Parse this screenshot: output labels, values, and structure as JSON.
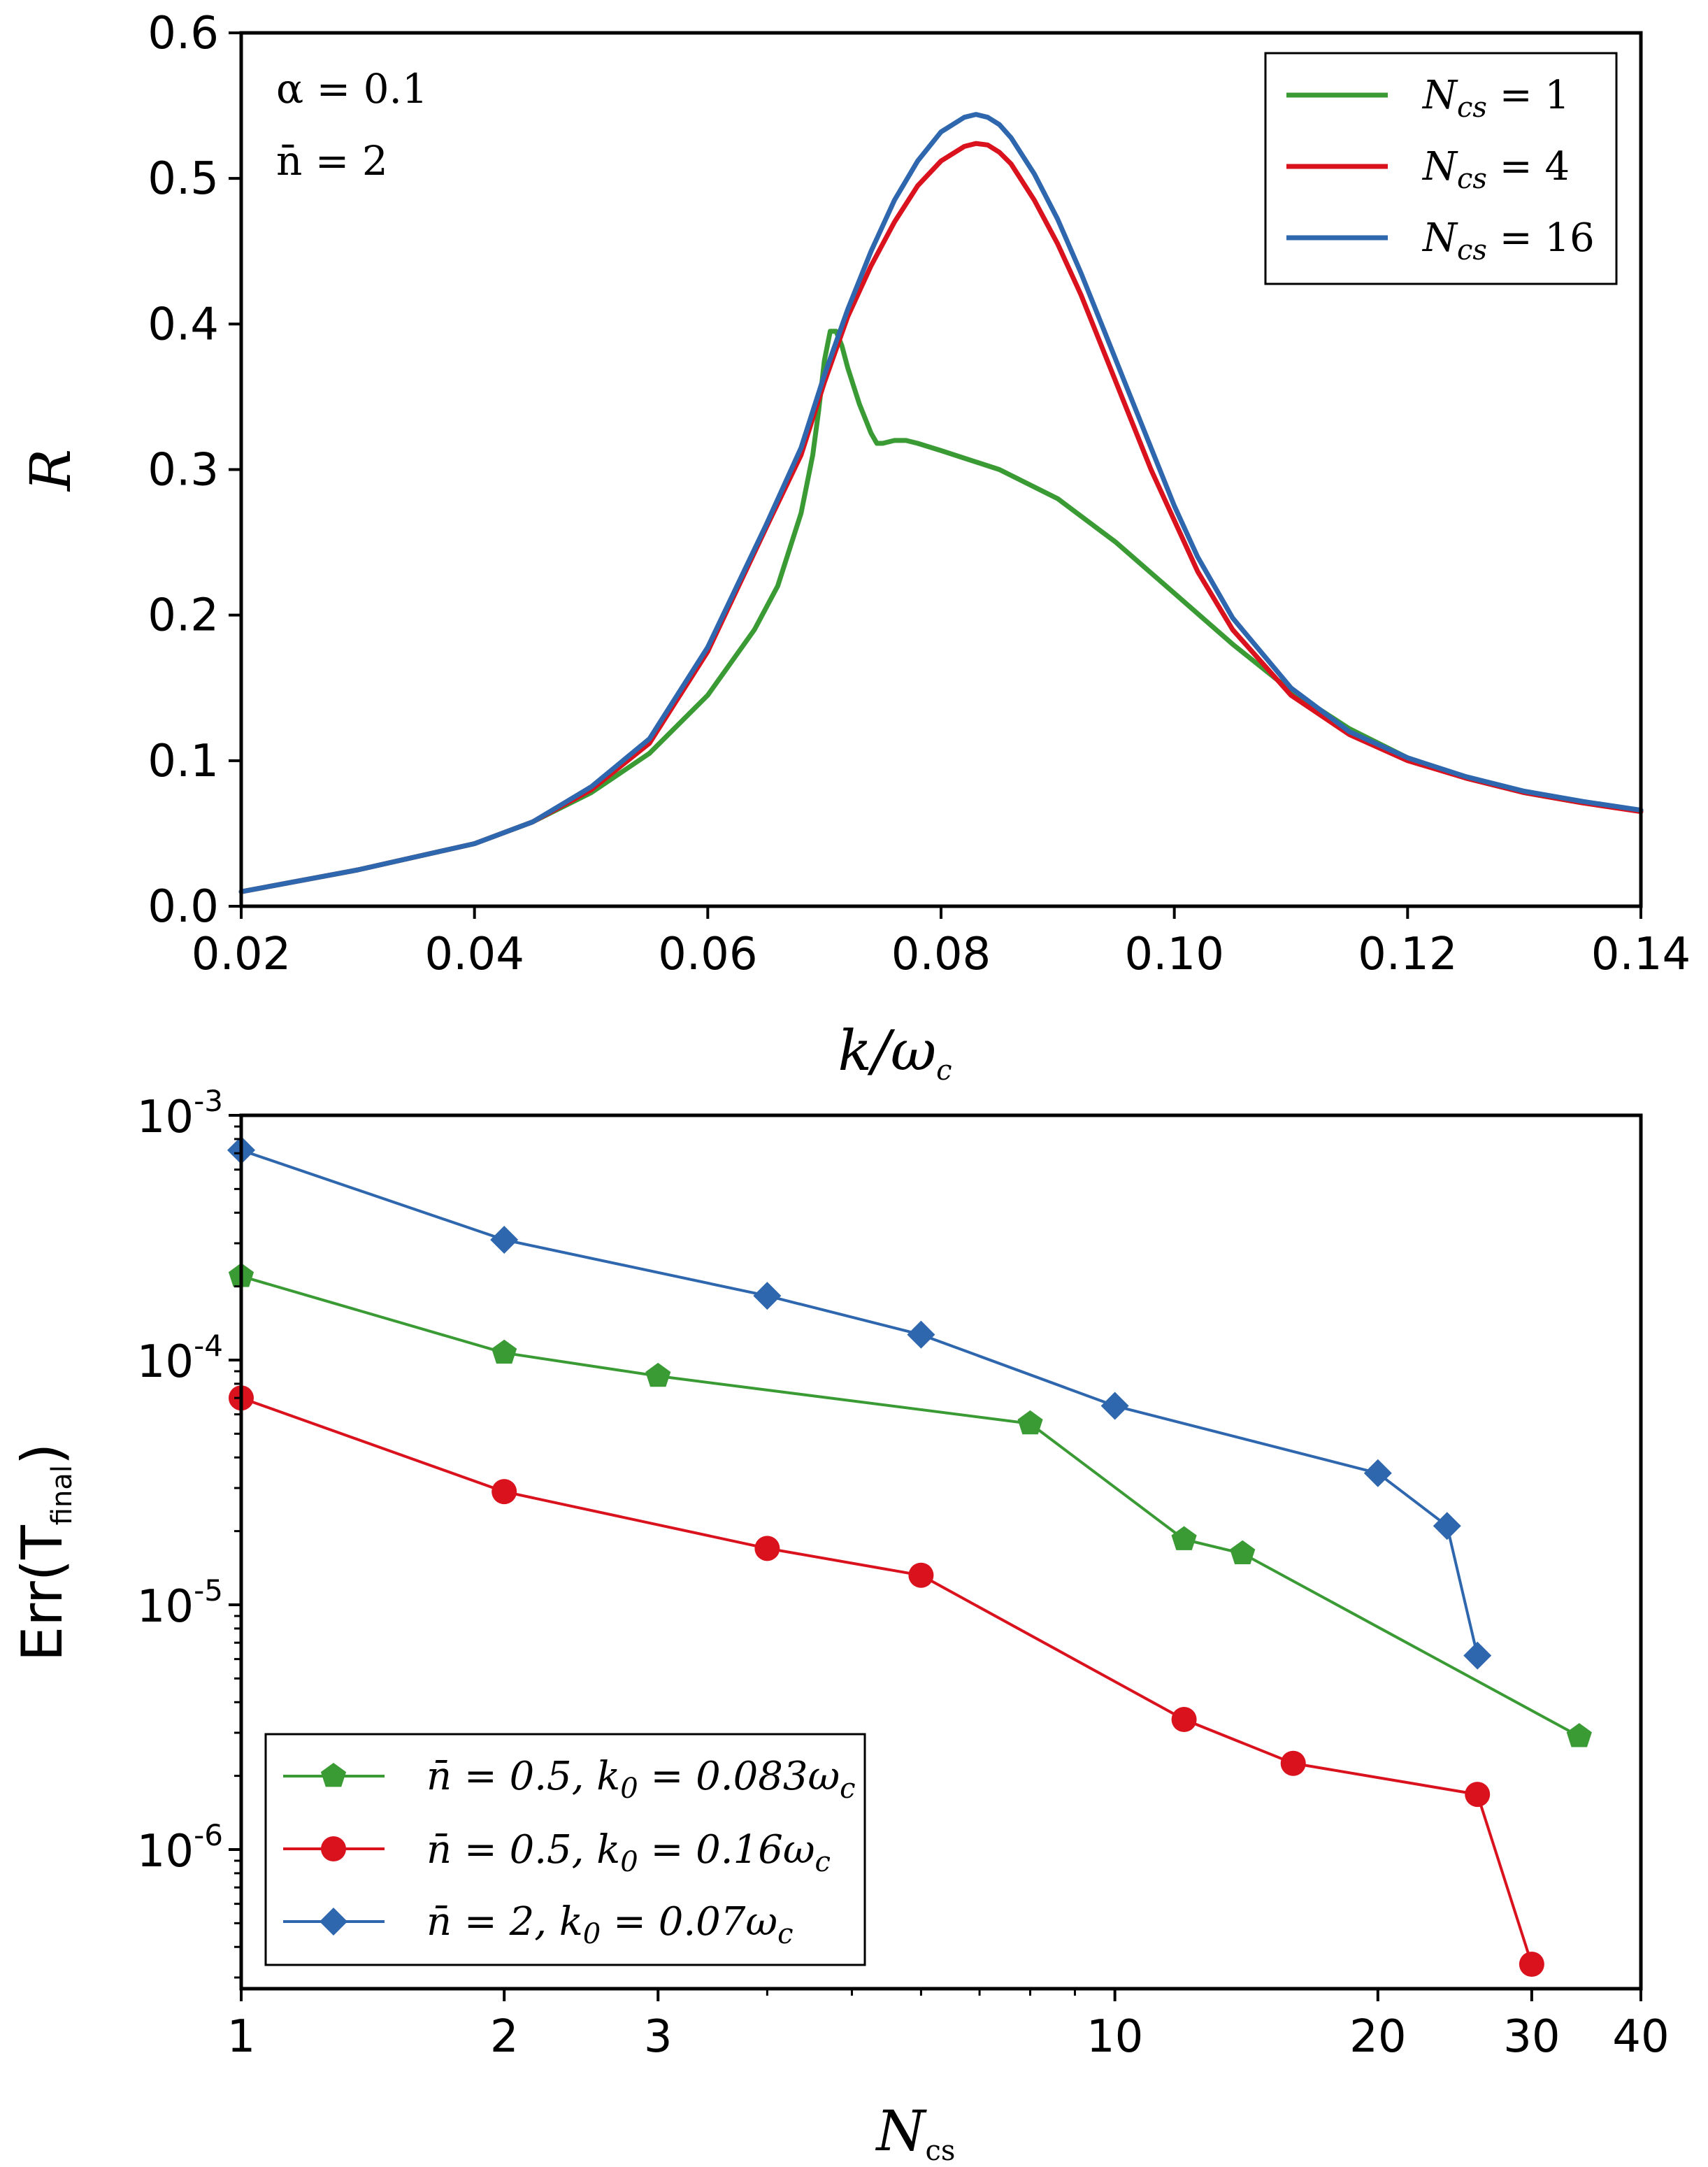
{
  "colors": {
    "green": "#3a9b35",
    "red": "#d9121e",
    "blue": "#2f67ae"
  },
  "chart_data": [
    {
      "type": "line",
      "xlabel": "k/ω",
      "xlabel_sub": "c",
      "ylabel": "R",
      "xlim": [
        0.02,
        0.14
      ],
      "ylim": [
        0.0,
        0.6
      ],
      "xticks": [
        "0.02",
        "0.04",
        "0.06",
        "0.08",
        "0.10",
        "0.12",
        "0.14"
      ],
      "yticks": [
        "0.0",
        "0.1",
        "0.2",
        "0.3",
        "0.4",
        "0.5",
        "0.6"
      ],
      "annotations": [
        "α = 0.1",
        "n̄ = 2"
      ],
      "legend_position": "top-right",
      "series": [
        {
          "name": "N_cs = 1",
          "label_main": "N",
          "label_sub": "cs",
          "label_rest": " = 1",
          "color": "green",
          "x": [
            0.02,
            0.03,
            0.04,
            0.045,
            0.05,
            0.055,
            0.06,
            0.064,
            0.066,
            0.068,
            0.069,
            0.0695,
            0.07,
            0.0705,
            0.071,
            0.0715,
            0.072,
            0.073,
            0.074,
            0.0745,
            0.075,
            0.076,
            0.077,
            0.078,
            0.08,
            0.085,
            0.09,
            0.095,
            0.1,
            0.105,
            0.11,
            0.115,
            0.12,
            0.125,
            0.13,
            0.135,
            0.14
          ],
          "y": [
            0.01,
            0.025,
            0.043,
            0.058,
            0.078,
            0.105,
            0.145,
            0.19,
            0.22,
            0.27,
            0.31,
            0.34,
            0.375,
            0.395,
            0.395,
            0.385,
            0.37,
            0.345,
            0.325,
            0.318,
            0.318,
            0.32,
            0.32,
            0.318,
            0.313,
            0.3,
            0.28,
            0.25,
            0.215,
            0.18,
            0.148,
            0.122,
            0.102,
            0.088,
            0.078,
            0.071,
            0.066
          ]
        },
        {
          "name": "N_cs = 4",
          "label_main": "N",
          "label_sub": "cs",
          "label_rest": " = 4",
          "color": "red",
          "x": [
            0.02,
            0.03,
            0.04,
            0.045,
            0.05,
            0.055,
            0.06,
            0.065,
            0.068,
            0.07,
            0.072,
            0.074,
            0.076,
            0.078,
            0.08,
            0.082,
            0.083,
            0.084,
            0.085,
            0.086,
            0.088,
            0.09,
            0.092,
            0.094,
            0.096,
            0.098,
            0.1,
            0.102,
            0.105,
            0.11,
            0.115,
            0.12,
            0.125,
            0.13,
            0.135,
            0.14
          ],
          "y": [
            0.01,
            0.025,
            0.043,
            0.058,
            0.08,
            0.112,
            0.175,
            0.26,
            0.31,
            0.36,
            0.405,
            0.44,
            0.47,
            0.495,
            0.512,
            0.522,
            0.524,
            0.523,
            0.518,
            0.51,
            0.485,
            0.455,
            0.42,
            0.38,
            0.34,
            0.3,
            0.265,
            0.23,
            0.19,
            0.145,
            0.118,
            0.1,
            0.088,
            0.078,
            0.071,
            0.065
          ]
        },
        {
          "name": "N_cs = 16",
          "label_main": "N",
          "label_sub": "cs",
          "label_rest": " = 16",
          "color": "blue",
          "x": [
            0.02,
            0.03,
            0.04,
            0.045,
            0.05,
            0.055,
            0.06,
            0.065,
            0.068,
            0.07,
            0.072,
            0.074,
            0.076,
            0.078,
            0.08,
            0.082,
            0.083,
            0.084,
            0.085,
            0.086,
            0.088,
            0.09,
            0.092,
            0.094,
            0.096,
            0.098,
            0.1,
            0.102,
            0.105,
            0.11,
            0.115,
            0.12,
            0.125,
            0.13,
            0.135,
            0.14
          ],
          "y": [
            0.01,
            0.025,
            0.043,
            0.058,
            0.082,
            0.115,
            0.178,
            0.262,
            0.315,
            0.365,
            0.41,
            0.45,
            0.485,
            0.512,
            0.532,
            0.542,
            0.544,
            0.542,
            0.537,
            0.528,
            0.503,
            0.472,
            0.435,
            0.395,
            0.355,
            0.315,
            0.275,
            0.24,
            0.198,
            0.15,
            0.12,
            0.102,
            0.089,
            0.079,
            0.072,
            0.066
          ]
        }
      ]
    },
    {
      "type": "line",
      "x_scale": "log",
      "y_scale": "log",
      "xlabel": "N",
      "xlabel_sub": "cs",
      "ylabel": "Err(T",
      "ylabel_sub": "final",
      "ylabel_close": ")",
      "xlim": [
        1,
        40
      ],
      "ylim": [
        2.7e-07,
        0.001
      ],
      "xticks": [
        {
          "value": 1,
          "label": "1"
        },
        {
          "value": 2,
          "label": "2"
        },
        {
          "value": 3,
          "label": "3"
        },
        {
          "value": 10,
          "label": "10"
        },
        {
          "value": 20,
          "label": "20"
        },
        {
          "value": 30,
          "label": "30"
        },
        {
          "value": 40,
          "label": "40"
        }
      ],
      "yticks": [
        {
          "value": 1e-06,
          "base": "10",
          "exp": "-6"
        },
        {
          "value": 1e-05,
          "base": "10",
          "exp": "-5"
        },
        {
          "value": 0.0001,
          "base": "10",
          "exp": "-4"
        },
        {
          "value": 0.001,
          "base": "10",
          "exp": "-3"
        }
      ],
      "legend_position": "lower-left",
      "series": [
        {
          "name": "n̄ = 0.5, k0 = 0.083ωc",
          "label_a": "n̄ = 0.5, k",
          "label_a_sub": "0",
          "label_b": " = 0.083ω",
          "label_b_sub": "c",
          "color": "green",
          "marker": "pentagon",
          "x": [
            1,
            2,
            3,
            8,
            12,
            14,
            34
          ],
          "y": [
            0.00022,
            0.000107,
            8.6e-05,
            5.5e-05,
            1.85e-05,
            1.62e-05,
            2.9e-06
          ]
        },
        {
          "name": "n̄ = 0.5, k0 = 0.16ωc",
          "label_a": "n̄ = 0.5, k",
          "label_a_sub": "0",
          "label_b": " = 0.16ω",
          "label_b_sub": "c",
          "color": "red",
          "marker": "circle",
          "x": [
            1,
            2,
            4,
            6,
            12,
            16,
            26,
            30
          ],
          "y": [
            7e-05,
            2.9e-05,
            1.7e-05,
            1.32e-05,
            3.4e-06,
            2.25e-06,
            1.68e-06,
            3.4e-07
          ]
        },
        {
          "name": "n̄ = 2, k0 = 0.07ωc",
          "label_a": "n̄ = 2, k",
          "label_a_sub": "0",
          "label_b": " = 0.07ω",
          "label_b_sub": "c",
          "color": "blue",
          "marker": "diamond",
          "x": [
            1,
            2,
            4,
            6,
            10,
            20,
            24,
            26
          ],
          "y": [
            0.00072,
            0.00031,
            0.000183,
            0.000127,
            6.5e-05,
            3.45e-05,
            2.1e-05,
            6.2e-06
          ]
        }
      ]
    }
  ]
}
